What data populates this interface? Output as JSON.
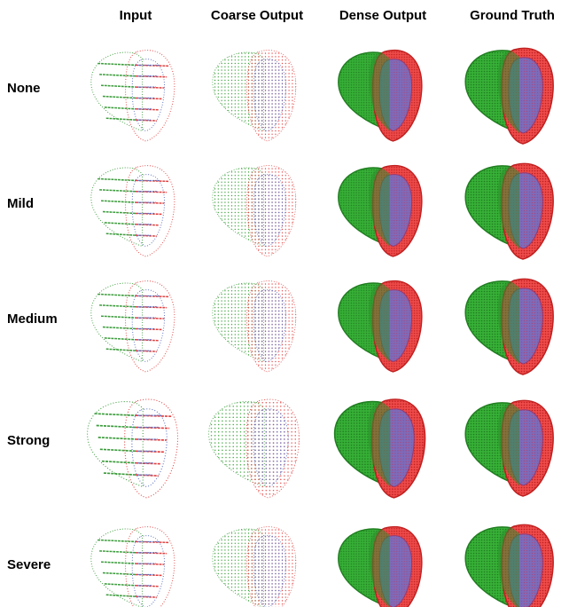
{
  "columns": [
    "Input",
    "Coarse Output",
    "Dense Output",
    "Ground Truth"
  ],
  "rows": [
    "None",
    "Mild",
    "Medium",
    "Strong",
    "Severe"
  ]
}
